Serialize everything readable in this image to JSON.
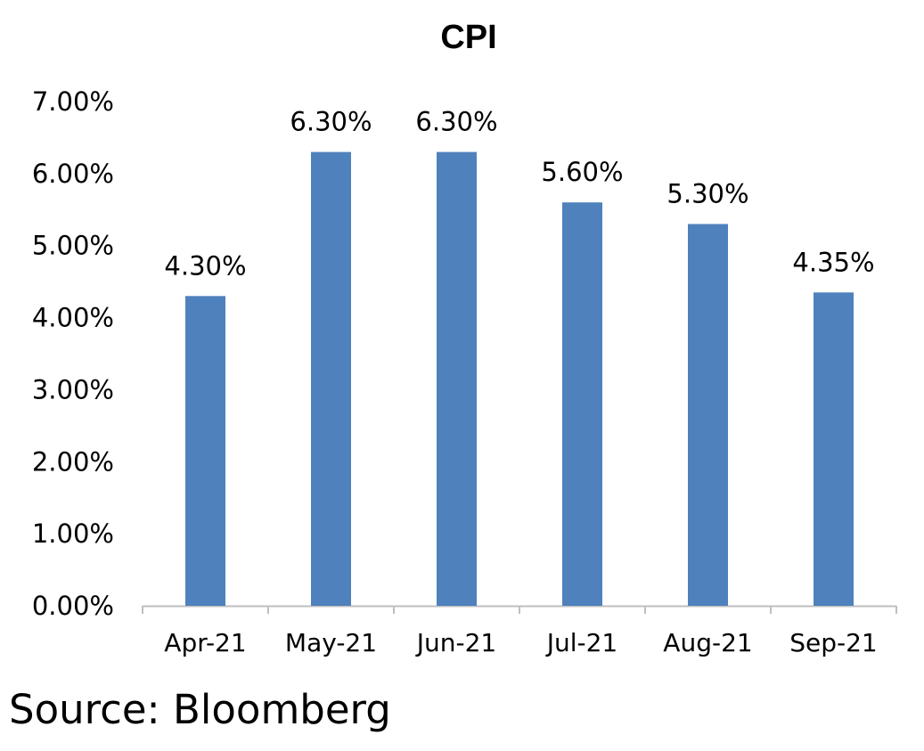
{
  "chart_data": {
    "type": "bar",
    "title": "CPI",
    "categories": [
      "Apr-21",
      "May-21",
      "Jun-21",
      "Jul-21",
      "Aug-21",
      "Sep-21"
    ],
    "series": [
      {
        "values": [
          4.3,
          6.3,
          6.3,
          5.6,
          5.3,
          4.35
        ],
        "data_labels": [
          "4.30%",
          "6.30%",
          "6.30%",
          "5.60%",
          "5.30%",
          "4.35%"
        ],
        "color": "#4F81BD"
      }
    ],
    "xlabel": "",
    "ylabel": "",
    "ylim": [
      0,
      7
    ],
    "yticks": [
      0,
      1,
      2,
      3,
      4,
      5,
      6,
      7
    ],
    "ytick_labels": [
      "0.00%",
      "1.00%",
      "2.00%",
      "3.00%",
      "4.00%",
      "5.00%",
      "6.00%",
      "7.00%"
    ],
    "grid": false,
    "legend": "none",
    "axis_color": "#BFBFBF"
  },
  "source": "Source: Bloomberg"
}
